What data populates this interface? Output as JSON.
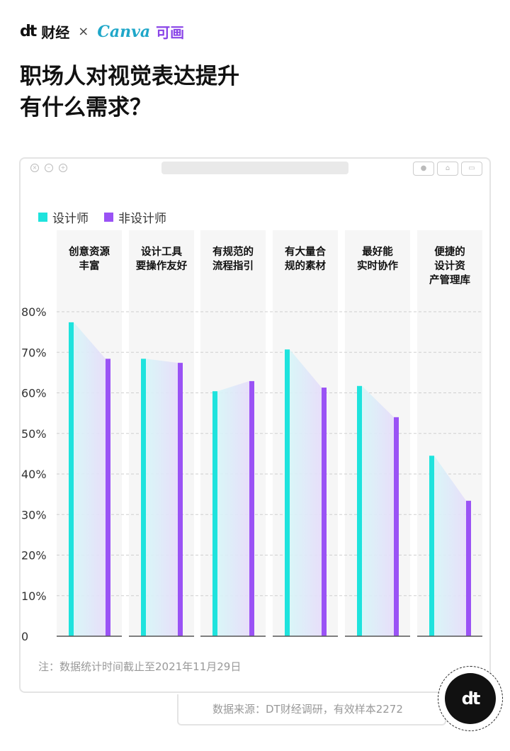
{
  "brand": {
    "dt": "dt",
    "caijing": "财经",
    "times": "×",
    "canva": "Canva",
    "kehua": "可画"
  },
  "title": [
    "职场人对视觉表达提升",
    "有什么需求？"
  ],
  "colors": {
    "designer": "#1ee3dd",
    "non_designer": "#9a52f5"
  },
  "chart_data": {
    "type": "bar",
    "title": "职场人对视觉表达提升有什么需求？",
    "categories": [
      [
        "创意资源",
        "丰富"
      ],
      [
        "设计工具",
        "要操作友好"
      ],
      [
        "有规范的",
        "流程指引"
      ],
      [
        "有大量合",
        "规的素材"
      ],
      [
        "最好能",
        "实时协作"
      ],
      [
        "便捷的",
        "设计资",
        "产管理库"
      ]
    ],
    "series": [
      {
        "name": "设计师",
        "values": [
          77.4,
          68.4,
          60.4,
          70.7,
          61.7,
          44.5
        ]
      },
      {
        "name": "非设计师",
        "values": [
          68.4,
          67.4,
          62.9,
          61.3,
          54.0,
          33.4
        ]
      }
    ],
    "y_ticks": [
      "0",
      "10%",
      "20%",
      "30%",
      "40%",
      "50%",
      "60%",
      "70%",
      "80%"
    ],
    "ylim": [
      0,
      80
    ],
    "grid": true,
    "legend_position": "top-left"
  },
  "note": "注：数据统计时间截止至2021年11月29日",
  "source": "数据来源：DT财经调研，有效样本2272",
  "logo": "dt"
}
